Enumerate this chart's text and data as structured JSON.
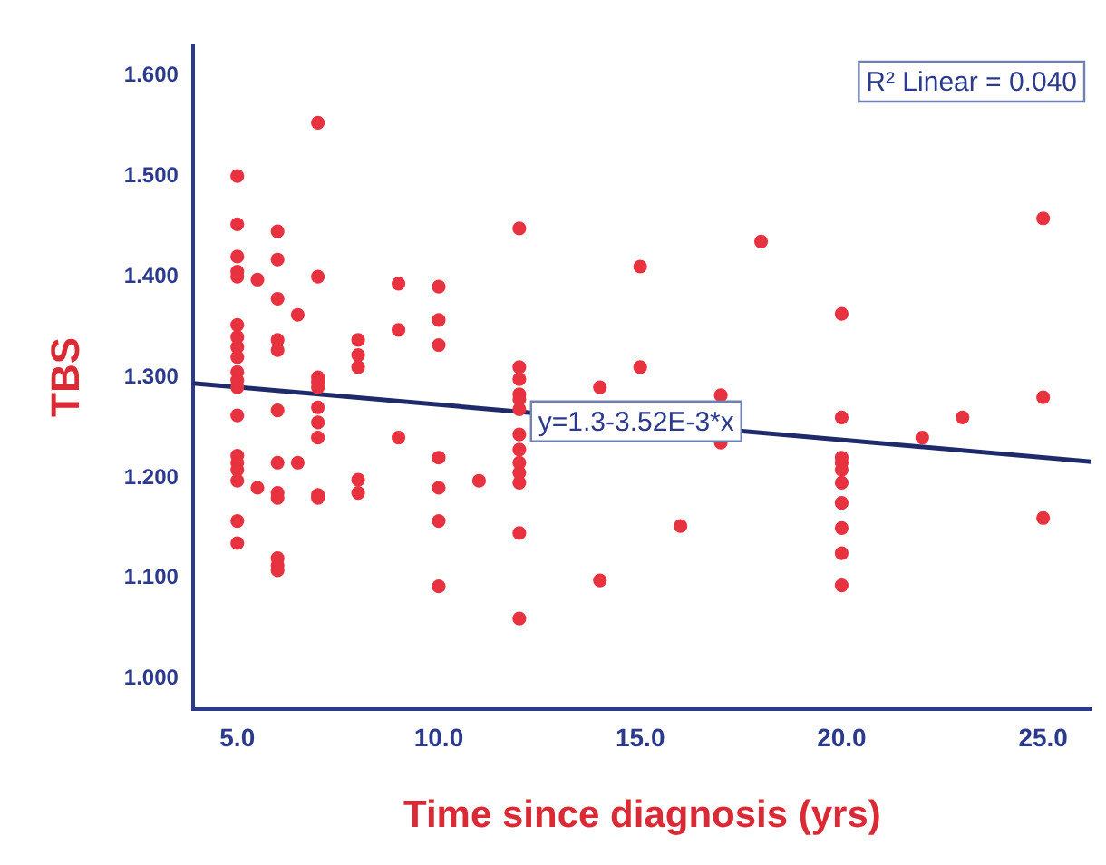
{
  "chart_data": {
    "type": "scatter",
    "xlabel": "Time since diagnosis (yrs)",
    "ylabel": "TBS",
    "xlim": [
      3.9,
      26.2
    ],
    "ylim": [
      0.97,
      1.63
    ],
    "xticks": [
      {
        "value": 5,
        "label": "5.0"
      },
      {
        "value": 10,
        "label": "10.0"
      },
      {
        "value": 15,
        "label": "15.0"
      },
      {
        "value": 20,
        "label": "20.0"
      },
      {
        "value": 25,
        "label": "25.0"
      }
    ],
    "yticks": [
      {
        "value": 1,
        "label": "1.000"
      },
      {
        "value": 1.1,
        "label": "1.100"
      },
      {
        "value": 1.2,
        "label": "1.200"
      },
      {
        "value": 1.3,
        "label": "1.300"
      },
      {
        "value": 1.4,
        "label": "1.400"
      },
      {
        "value": 1.5,
        "label": "1.500"
      },
      {
        "value": 1.6,
        "label": "1.600"
      }
    ],
    "grid": false,
    "legend": false,
    "marker": "circle",
    "series": [
      {
        "color": "#e8323f",
        "x": [
          5,
          5,
          5,
          5,
          5,
          5,
          5,
          5,
          5,
          5,
          5,
          5,
          5,
          5,
          5,
          5,
          5,
          5,
          5,
          5.5,
          5.5,
          6,
          6,
          6,
          6,
          6,
          6,
          6,
          6,
          6,
          6,
          6,
          6,
          6.5,
          6.5,
          7,
          7,
          7,
          7,
          7,
          7,
          7,
          7,
          7,
          7,
          8,
          8,
          8,
          8,
          8,
          9,
          9,
          9,
          10,
          10,
          10,
          10,
          10,
          10,
          10,
          11,
          12,
          12,
          12,
          12,
          12,
          12,
          12,
          12,
          12,
          12,
          12,
          12,
          12,
          14,
          14,
          15,
          15,
          16,
          17,
          17,
          18,
          20,
          20,
          20,
          20,
          20,
          20,
          20,
          20,
          20,
          20,
          22,
          23,
          25,
          25,
          25
        ],
        "values": [
          1.5,
          1.452,
          1.42,
          1.405,
          1.4,
          1.352,
          1.34,
          1.33,
          1.32,
          1.305,
          1.297,
          1.29,
          1.262,
          1.222,
          1.215,
          1.208,
          1.197,
          1.157,
          1.135,
          1.397,
          1.19,
          1.445,
          1.417,
          1.378,
          1.337,
          1.327,
          1.267,
          1.215,
          1.185,
          1.18,
          1.12,
          1.113,
          1.108,
          1.362,
          1.215,
          1.553,
          1.4,
          1.3,
          1.295,
          1.29,
          1.27,
          1.255,
          1.24,
          1.183,
          1.18,
          1.337,
          1.322,
          1.31,
          1.198,
          1.185,
          1.393,
          1.347,
          1.24,
          1.39,
          1.357,
          1.332,
          1.22,
          1.19,
          1.157,
          1.092,
          1.197,
          1.448,
          1.31,
          1.298,
          1.283,
          1.278,
          1.268,
          1.243,
          1.228,
          1.215,
          1.205,
          1.195,
          1.145,
          1.06,
          1.29,
          1.098,
          1.41,
          1.31,
          1.152,
          1.282,
          1.235,
          1.435,
          1.363,
          1.26,
          1.22,
          1.215,
          1.208,
          1.195,
          1.175,
          1.15,
          1.125,
          1.093,
          1.24,
          1.26,
          1.458,
          1.28,
          1.16
        ]
      },
      {
        "type": "line",
        "color": "#1f2a6b",
        "x": [
          3.9,
          26.2
        ],
        "values": [
          1.294,
          1.216
        ],
        "marker": "none",
        "line_style": "solid"
      }
    ],
    "annotations": [
      {
        "text": "y=1.3-3.52E-3*x",
        "x": 14.9,
        "y": 1.256
      },
      "R² Linear = 0.040"
    ]
  }
}
